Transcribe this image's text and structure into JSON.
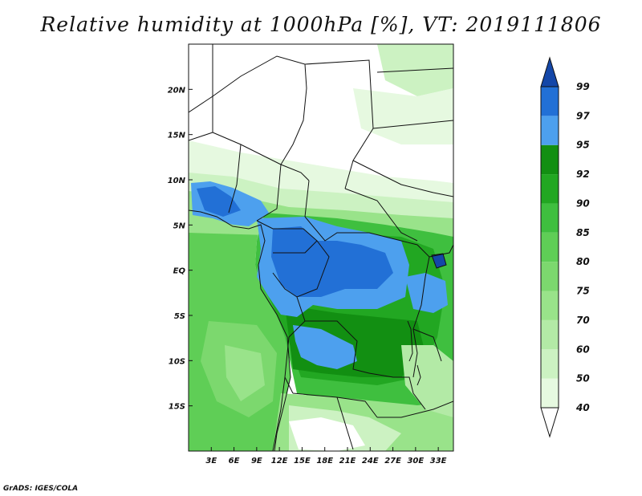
{
  "title": "Relative humidity at 1000hPa [%], VT: 2019111806",
  "credit": "GrADS: IGES/COLA",
  "map": {
    "lon_range": [
      0,
      35
    ],
    "lat_range": [
      -20,
      25
    ],
    "x_ticks": [
      "3E",
      "6E",
      "9E",
      "12E",
      "15E",
      "18E",
      "21E",
      "24E",
      "27E",
      "30E",
      "33E"
    ],
    "y_ticks": [
      "20N",
      "15N",
      "10N",
      "5N",
      "EQ",
      "5S",
      "10S",
      "15S"
    ]
  },
  "colorbar": {
    "levels": [
      "40",
      "50",
      "60",
      "70",
      "75",
      "80",
      "85",
      "90",
      "92",
      "95",
      "97",
      "99"
    ],
    "colors": {
      "lt40": "#ffffff",
      "40_50": "#e6f9e0",
      "50_60": "#ccf2c2",
      "60_70": "#b3eaa6",
      "70_75": "#99e38a",
      "75_80": "#7cd86e",
      "80_85": "#5fce56",
      "85_90": "#3fbf3f",
      "90_92": "#22a722",
      "92_95": "#128f12",
      "95_97": "#4da0ee",
      "97_99": "#2270d6",
      "gt99": "#1447a8"
    }
  }
}
